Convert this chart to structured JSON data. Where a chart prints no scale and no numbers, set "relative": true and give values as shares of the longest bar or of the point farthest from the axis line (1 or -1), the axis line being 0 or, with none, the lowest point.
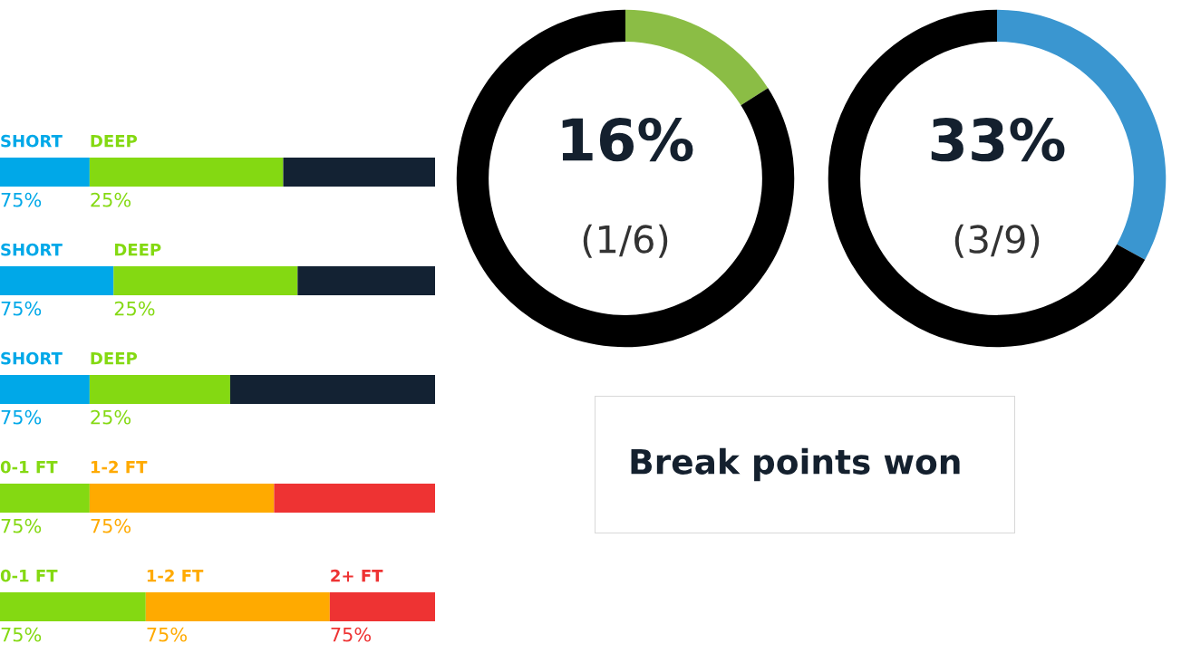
{
  "chart_data": [
    {
      "type": "bar",
      "orientation": "horizontal",
      "stacked": true,
      "relative": true,
      "categories": [
        null
      ],
      "annotations": [
        "75%",
        "25%"
      ],
      "series": [
        {
          "name": "SHORT",
          "color": "#00a8e8",
          "values": [
            0.206
          ]
        },
        {
          "name": "DEEP",
          "color": "#84d912",
          "values": [
            0.445
          ]
        },
        {
          "color": "#132233",
          "values": [
            0.349
          ]
        }
      ]
    },
    {
      "type": "bar",
      "orientation": "horizontal",
      "stacked": true,
      "relative": true,
      "categories": [
        null
      ],
      "annotations": [
        "75%",
        "25%"
      ],
      "series": [
        {
          "name": "SHORT",
          "color": "#00a8e8",
          "values": [
            0.261
          ]
        },
        {
          "name": "DEEP",
          "color": "#84d912",
          "values": [
            0.423
          ]
        },
        {
          "color": "#132233",
          "values": [
            0.316
          ]
        }
      ]
    },
    {
      "type": "bar",
      "orientation": "horizontal",
      "stacked": true,
      "relative": true,
      "categories": [
        null
      ],
      "annotations": [
        "75%",
        "25%"
      ],
      "series": [
        {
          "name": "SHORT",
          "color": "#00a8e8",
          "values": [
            0.206
          ]
        },
        {
          "name": "DEEP",
          "color": "#84d912",
          "values": [
            0.323
          ]
        },
        {
          "color": "#132233",
          "values": [
            0.471
          ]
        }
      ]
    },
    {
      "type": "bar",
      "orientation": "horizontal",
      "stacked": true,
      "relative": true,
      "categories": [
        null
      ],
      "annotations": [
        "75%",
        "75%"
      ],
      "series": [
        {
          "name": "0-1 FT",
          "color": "#84d912",
          "values": [
            0.206
          ]
        },
        {
          "name": "1-2 FT",
          "color": "#ffaa00",
          "values": [
            0.424
          ]
        },
        {
          "color": "#ee3333",
          "values": [
            0.37
          ]
        }
      ]
    },
    {
      "type": "bar",
      "orientation": "horizontal",
      "stacked": true,
      "relative": true,
      "categories": [
        null
      ],
      "annotations": [
        "75%",
        "75%",
        "75%"
      ],
      "series": [
        {
          "name": "0-1 FT",
          "color": "#84d912",
          "values": [
            0.335
          ]
        },
        {
          "name": "1-2 FT",
          "color": "#ffaa00",
          "values": [
            0.423
          ]
        },
        {
          "name": "2+ FT",
          "color": "#ee3333",
          "values": [
            0.242
          ]
        }
      ]
    },
    {
      "type": "donut",
      "categories": [
        null,
        null
      ],
      "values": [
        16,
        84
      ],
      "colors": [
        "#8bbd45",
        "#000000"
      ],
      "annotations": [
        "16%",
        "(1/6)"
      ]
    },
    {
      "type": "donut",
      "categories": [
        null,
        null
      ],
      "values": [
        33,
        67
      ],
      "colors": [
        "#3a96d0",
        "#000000"
      ],
      "annotations": [
        "33%",
        "(3/9)"
      ]
    },
    {
      "type": "other",
      "title": "Break points won"
    }
  ]
}
